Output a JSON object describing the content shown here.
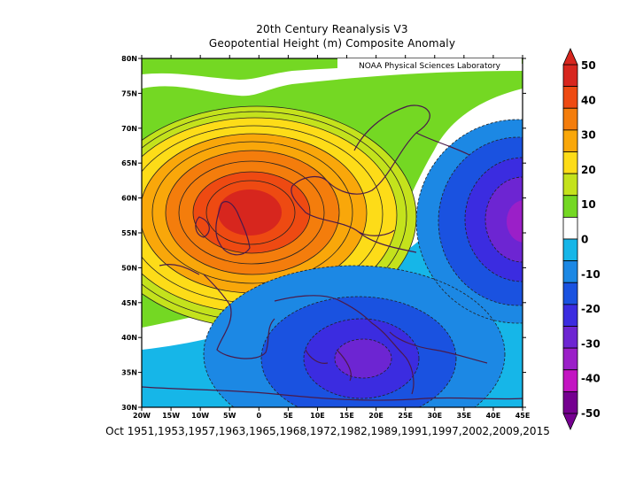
{
  "title": {
    "line1": "20th Century Reanalysis V3",
    "line2": "Geopotential Height (m) Composite Anomaly"
  },
  "credit": "NOAA Physical Sciences Laboratory",
  "footer": "Oct 1951,1953,1957,1963,1965,1968,1972,1982,1989,1991,1997,2002,2009,2015",
  "map": {
    "lat_labels": [
      "80N",
      "75N",
      "70N",
      "65N",
      "60N",
      "55N",
      "50N",
      "45N",
      "40N",
      "35N",
      "30N"
    ],
    "lon_labels": [
      "20W",
      "15W",
      "10W",
      "5W",
      "0",
      "5E",
      "10E",
      "15E",
      "20E",
      "25E",
      "30E",
      "35E",
      "40E",
      "45E"
    ]
  },
  "colorbar": {
    "labels": [
      "50",
      "40",
      "30",
      "20",
      "10",
      "0",
      "-10",
      "-20",
      "-30",
      "-40",
      "-50"
    ],
    "colors": [
      "#d7261e",
      "#ee4a12",
      "#f47d0c",
      "#f9a70a",
      "#fddc18",
      "#c4e21c",
      "#74d823",
      "#ffffff",
      "#16b6e8",
      "#1c88e4",
      "#1a52e0",
      "#3b2ce0",
      "#6d25d2",
      "#9b1fc8",
      "#c314c2",
      "#750090"
    ]
  },
  "chart_data": {
    "type": "heatmap",
    "title": "20th Century Reanalysis V3 — Geopotential Height (m) Composite Anomaly",
    "xlim": [
      -20,
      45
    ],
    "ylim": [
      30,
      80
    ],
    "color_scale": [
      -50,
      50
    ],
    "features": [
      {
        "center": [
          -1,
          58
        ],
        "anomaly": 50
      },
      {
        "center": [
          45,
          57
        ],
        "anomaly": -40
      },
      {
        "center": [
          17,
          37
        ],
        "anomaly": -35
      }
    ]
  }
}
